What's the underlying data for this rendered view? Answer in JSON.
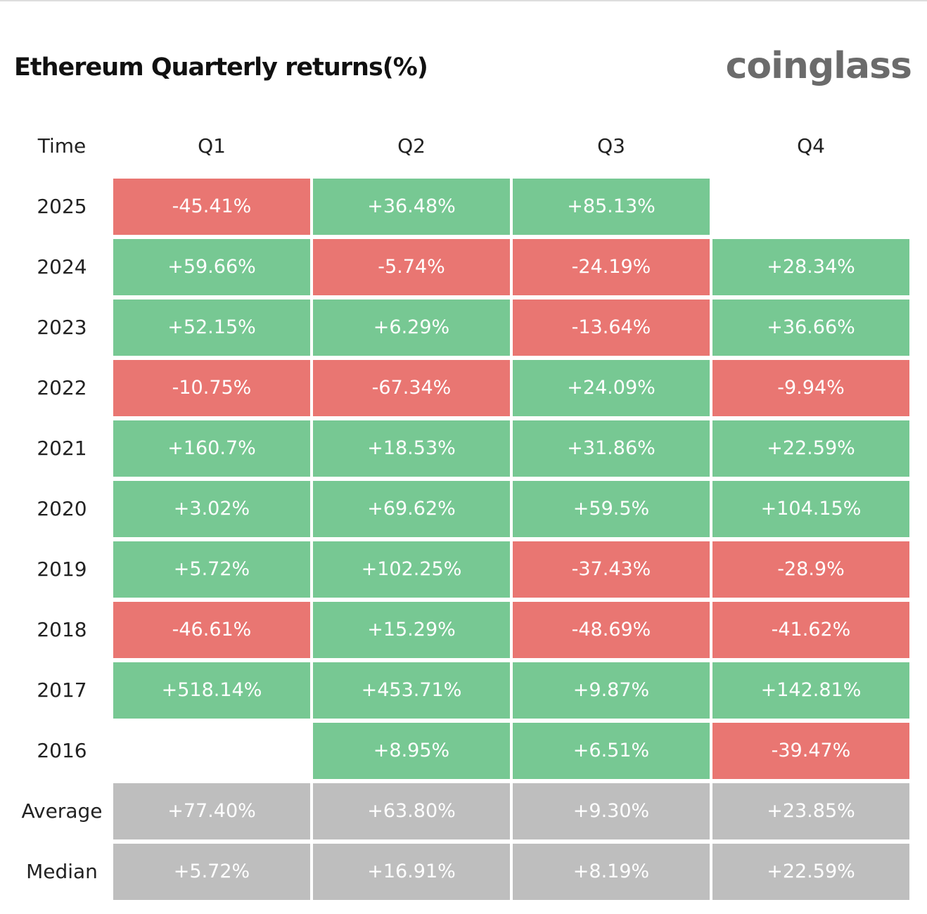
{
  "header": {
    "title": "Ethereum Quarterly returns(%)",
    "brand": "coinglass"
  },
  "colors": {
    "positive": "#77c893",
    "negative": "#e97672",
    "summary": "#bebebe"
  },
  "table": {
    "columns": [
      "Time",
      "Q1",
      "Q2",
      "Q3",
      "Q4"
    ],
    "rows": [
      {
        "label": "2025",
        "cells": [
          "-45.41%",
          "+36.48%",
          "+85.13%",
          null
        ]
      },
      {
        "label": "2024",
        "cells": [
          "+59.66%",
          "-5.74%",
          "-24.19%",
          "+28.34%"
        ]
      },
      {
        "label": "2023",
        "cells": [
          "+52.15%",
          "+6.29%",
          "-13.64%",
          "+36.66%"
        ]
      },
      {
        "label": "2022",
        "cells": [
          "-10.75%",
          "-67.34%",
          "+24.09%",
          "-9.94%"
        ]
      },
      {
        "label": "2021",
        "cells": [
          "+160.7%",
          "+18.53%",
          "+31.86%",
          "+22.59%"
        ]
      },
      {
        "label": "2020",
        "cells": [
          "+3.02%",
          "+69.62%",
          "+59.5%",
          "+104.15%"
        ]
      },
      {
        "label": "2019",
        "cells": [
          "+5.72%",
          "+102.25%",
          "-37.43%",
          "-28.9%"
        ]
      },
      {
        "label": "2018",
        "cells": [
          "-46.61%",
          "+15.29%",
          "-48.69%",
          "-41.62%"
        ]
      },
      {
        "label": "2017",
        "cells": [
          "+518.14%",
          "+453.71%",
          "+9.87%",
          "+142.81%"
        ]
      },
      {
        "label": "2016",
        "cells": [
          null,
          "+8.95%",
          "+6.51%",
          "-39.47%"
        ]
      }
    ],
    "summary": [
      {
        "label": "Average",
        "cells": [
          "+77.40%",
          "+63.80%",
          "+9.30%",
          "+23.85%"
        ]
      },
      {
        "label": "Median",
        "cells": [
          "+5.72%",
          "+16.91%",
          "+8.19%",
          "+22.59%"
        ]
      }
    ]
  }
}
